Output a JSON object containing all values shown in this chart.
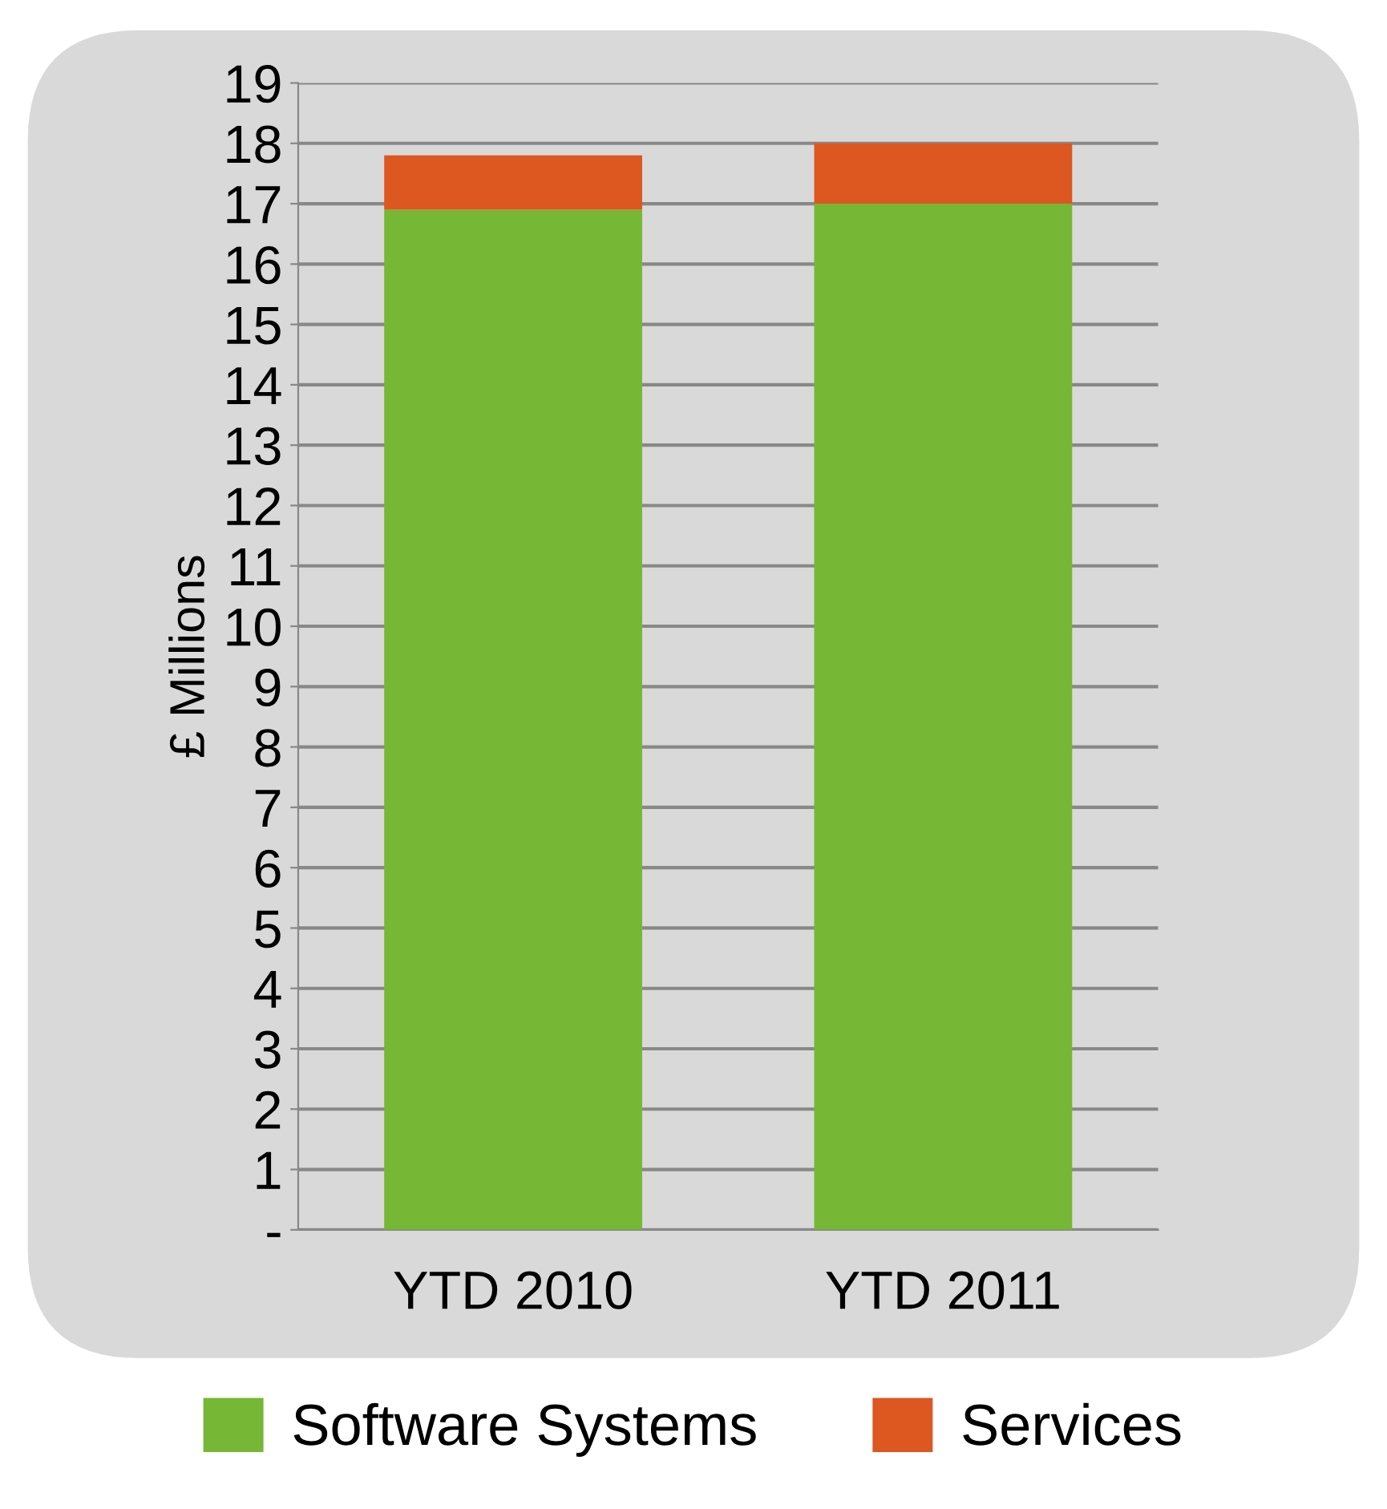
{
  "chart_data": {
    "type": "bar",
    "stacked": true,
    "ylabel": "£ Millions",
    "categories": [
      "YTD 2010",
      "YTD 2011"
    ],
    "series": [
      {
        "name": "Software Systems",
        "color": "#76b735",
        "values": [
          16.9,
          17.0
        ]
      },
      {
        "name": "Services",
        "color": "#dd5720",
        "values": [
          0.9,
          1.0
        ]
      }
    ],
    "ylim": [
      0,
      19
    ],
    "yticks": [
      {
        "value": 0,
        "label": "-"
      },
      1,
      2,
      3,
      4,
      5,
      6,
      7,
      8,
      9,
      10,
      11,
      12,
      13,
      14,
      15,
      16,
      17,
      18,
      19
    ],
    "grid": "y",
    "legend": "bottom"
  }
}
